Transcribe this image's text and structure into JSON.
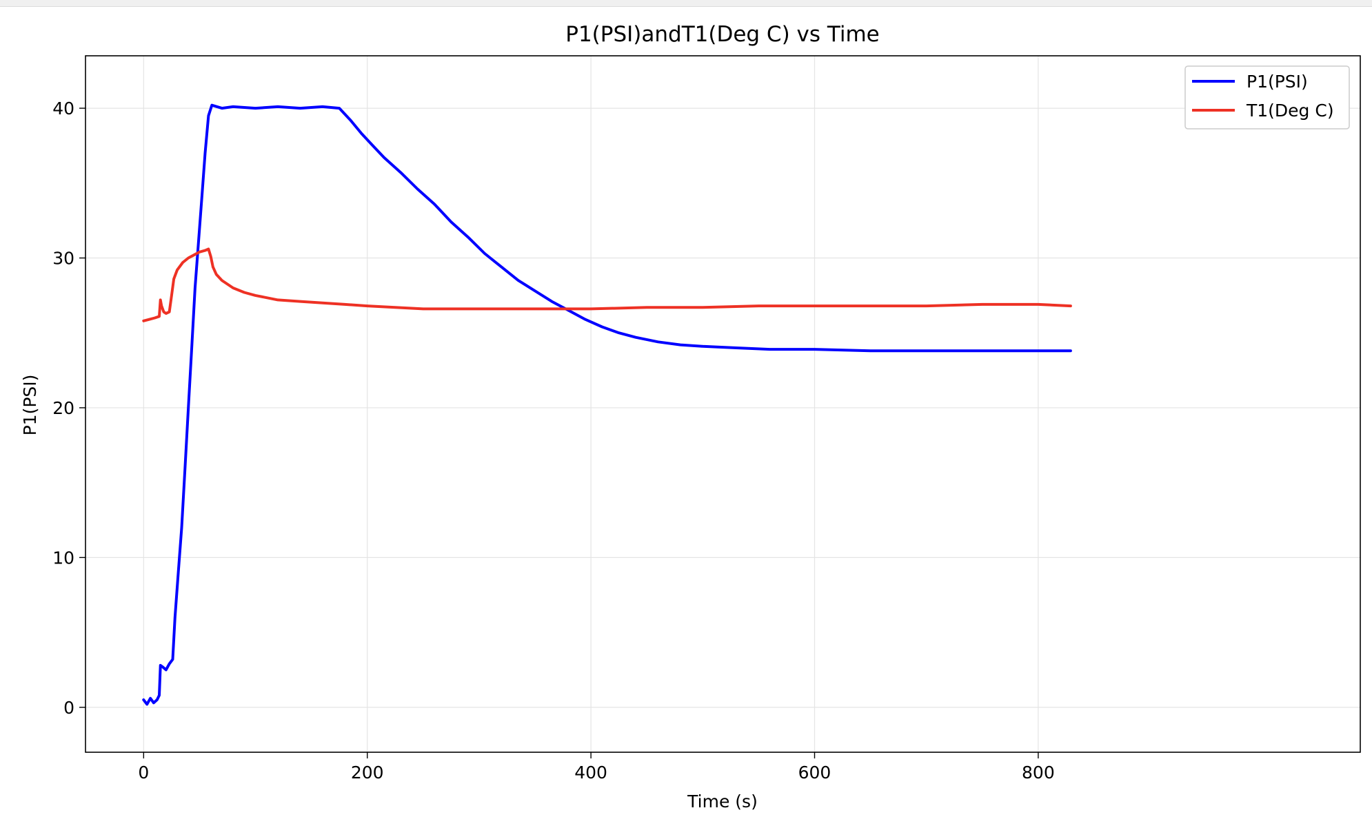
{
  "chart_data": {
    "type": "line",
    "title": "P1(PSI)andT1(Deg C) vs Time",
    "xlabel": "Time (s)",
    "ylabel": "P1(PSI)",
    "xlim": [
      -52,
      1088
    ],
    "ylim": [
      -3,
      43.5
    ],
    "xticks": [
      0,
      200,
      400,
      600,
      800
    ],
    "yticks": [
      0,
      10,
      20,
      30,
      40
    ],
    "grid": true,
    "legend_position": "top-right",
    "series": [
      {
        "name": "P1(PSI)",
        "color": "#0000ff",
        "points": [
          [
            0,
            0.5
          ],
          [
            3,
            0.2
          ],
          [
            6,
            0.6
          ],
          [
            9,
            0.3
          ],
          [
            12,
            0.5
          ],
          [
            14,
            0.8
          ],
          [
            15,
            2.8
          ],
          [
            17,
            2.7
          ],
          [
            20,
            2.5
          ],
          [
            23,
            2.9
          ],
          [
            26,
            3.2
          ],
          [
            28,
            6
          ],
          [
            31,
            9
          ],
          [
            34,
            12
          ],
          [
            37,
            16
          ],
          [
            40,
            20
          ],
          [
            43,
            24
          ],
          [
            46,
            28
          ],
          [
            49,
            31
          ],
          [
            52,
            34
          ],
          [
            55,
            37
          ],
          [
            58,
            39.5
          ],
          [
            61,
            40.2
          ],
          [
            70,
            40.0
          ],
          [
            80,
            40.1
          ],
          [
            100,
            40.0
          ],
          [
            120,
            40.1
          ],
          [
            140,
            40.0
          ],
          [
            160,
            40.1
          ],
          [
            175,
            40.0
          ],
          [
            185,
            39.2
          ],
          [
            195,
            38.3
          ],
          [
            205,
            37.5
          ],
          [
            215,
            36.7
          ],
          [
            230,
            35.7
          ],
          [
            245,
            34.6
          ],
          [
            260,
            33.6
          ],
          [
            275,
            32.4
          ],
          [
            290,
            31.4
          ],
          [
            305,
            30.3
          ],
          [
            320,
            29.4
          ],
          [
            335,
            28.5
          ],
          [
            350,
            27.8
          ],
          [
            365,
            27.1
          ],
          [
            380,
            26.5
          ],
          [
            395,
            25.9
          ],
          [
            410,
            25.4
          ],
          [
            425,
            25.0
          ],
          [
            440,
            24.7
          ],
          [
            460,
            24.4
          ],
          [
            480,
            24.2
          ],
          [
            500,
            24.1
          ],
          [
            530,
            24.0
          ],
          [
            560,
            23.9
          ],
          [
            600,
            23.9
          ],
          [
            650,
            23.8
          ],
          [
            700,
            23.8
          ],
          [
            750,
            23.8
          ],
          [
            800,
            23.8
          ],
          [
            829,
            23.8
          ]
        ]
      },
      {
        "name": "T1(Deg C)",
        "color": "#ee3124",
        "points": [
          [
            0,
            25.8
          ],
          [
            5,
            25.9
          ],
          [
            10,
            26.0
          ],
          [
            14,
            26.1
          ],
          [
            15,
            27.2
          ],
          [
            16,
            26.8
          ],
          [
            18,
            26.4
          ],
          [
            20,
            26.3
          ],
          [
            23,
            26.4
          ],
          [
            25,
            27.5
          ],
          [
            27,
            28.6
          ],
          [
            30,
            29.2
          ],
          [
            35,
            29.7
          ],
          [
            40,
            30.0
          ],
          [
            45,
            30.2
          ],
          [
            50,
            30.4
          ],
          [
            55,
            30.5
          ],
          [
            58,
            30.6
          ],
          [
            60,
            30.1
          ],
          [
            62,
            29.4
          ],
          [
            65,
            28.9
          ],
          [
            70,
            28.5
          ],
          [
            80,
            28.0
          ],
          [
            90,
            27.7
          ],
          [
            100,
            27.5
          ],
          [
            120,
            27.2
          ],
          [
            140,
            27.1
          ],
          [
            160,
            27.0
          ],
          [
            180,
            26.9
          ],
          [
            200,
            26.8
          ],
          [
            250,
            26.6
          ],
          [
            300,
            26.6
          ],
          [
            350,
            26.6
          ],
          [
            400,
            26.6
          ],
          [
            450,
            26.7
          ],
          [
            500,
            26.7
          ],
          [
            550,
            26.8
          ],
          [
            600,
            26.8
          ],
          [
            650,
            26.8
          ],
          [
            700,
            26.8
          ],
          [
            750,
            26.9
          ],
          [
            800,
            26.9
          ],
          [
            829,
            26.8
          ]
        ]
      }
    ]
  }
}
